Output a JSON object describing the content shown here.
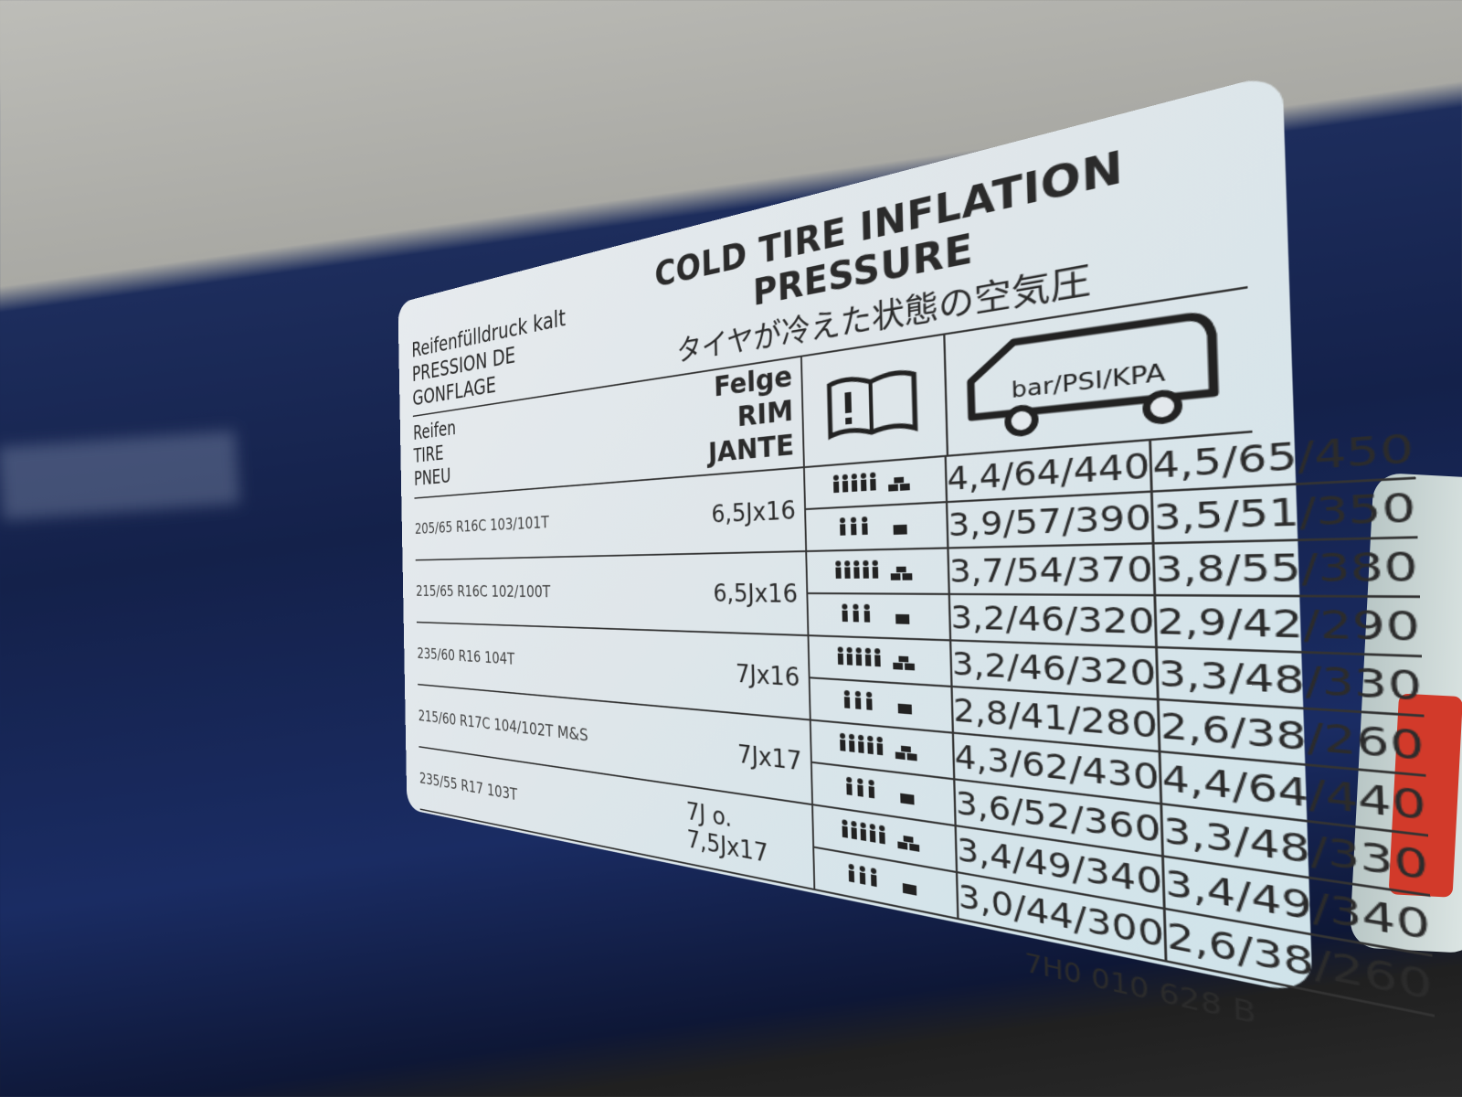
{
  "header": {
    "de": "Reifenfülldruck kalt",
    "fr": "PRESSION DE GONFLAGE",
    "en": "COLD TIRE INFLATION PRESSURE",
    "jp": "タイヤが冷えた状態の空気圧"
  },
  "columns": {
    "tire": [
      "Reifen",
      "TIRE",
      "PNEU"
    ],
    "rim": [
      "Felge",
      "RIM",
      "JANTE"
    ],
    "units": "bar/PSI/KPA"
  },
  "load_icons": [
    "full-load-icon",
    "partial-load-icon"
  ],
  "rows": [
    {
      "tire": "205/65 R16C  103/101T",
      "rim": "6,5Jx16",
      "full": [
        "4,4/64/440",
        "4,5/65/450"
      ],
      "partial": [
        "3,9/57/390",
        "3,5/51/350"
      ]
    },
    {
      "tire": "215/65 R16C  102/100T",
      "rim": "6,5Jx16",
      "full": [
        "3,7/54/370",
        "3,8/55/380"
      ],
      "partial": [
        "3,2/46/320",
        "2,9/42/290"
      ]
    },
    {
      "tire": "235/60 R16   104T",
      "rim": "7Jx16",
      "full": [
        "3,2/46/320",
        "3,3/48/330"
      ],
      "partial": [
        "2,8/41/280",
        "2,6/38/260"
      ]
    },
    {
      "tire": "215/60 R17C  104/102T M&S",
      "rim": "7Jx17",
      "full": [
        "4,3/62/430",
        "4,4/64/440"
      ],
      "partial": [
        "3,6/52/360",
        "3,3/48/330"
      ]
    },
    {
      "tire": "235/55 R17   103T",
      "rim": "7J o. 7,5Jx17",
      "full": [
        "3,4/49/340",
        "3,4/49/340"
      ],
      "partial": [
        "3,0/44/300",
        "2,6/38/260"
      ]
    }
  ],
  "part_number": "7H0 010 628 B",
  "colors": {
    "label": "#e3e8ec",
    "car_paint": "#1a2a5e",
    "text": "#2b2b2b"
  }
}
